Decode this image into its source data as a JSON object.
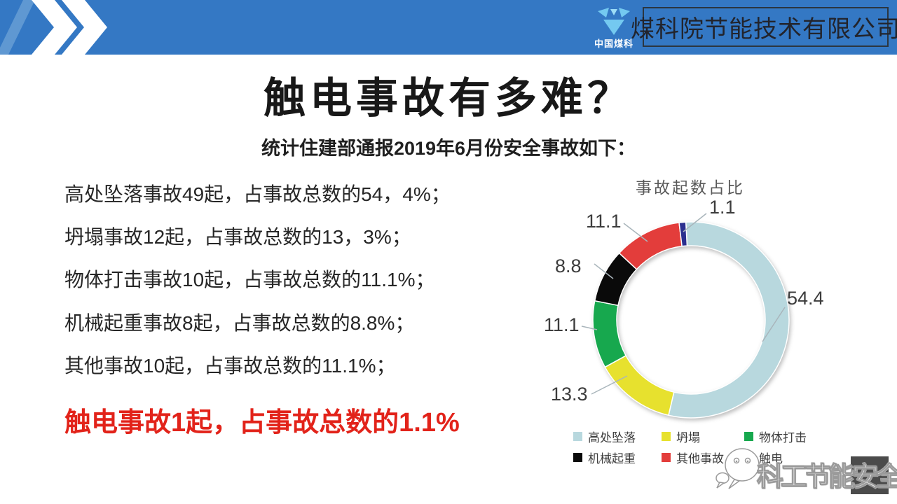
{
  "header": {
    "logo_text": "中国煤科",
    "company_name": "煤科院节能技术有限公司"
  },
  "title": "触电事故有多难？",
  "subtitle": "统计住建部通报2019年6月份安全事故如下：",
  "body_lines": [
    "高处坠落事故49起，占事故总数的54，4%；",
    "坍塌事故12起，占事故总数的13，3%；",
    "物体打击事故10起，占事故总数的11.1%；",
    "机械起重事故8起，占事故总数的8.8%；",
    "其他事故10起，占事故总数的11.1%；"
  ],
  "highlight_line": "触电事故1起，占事故总数的1.1%",
  "chart_data": {
    "type": "pie",
    "donut": true,
    "title": "事故起数占比",
    "start_angle_deg": -3,
    "legend_position": "bottom",
    "slices": [
      {
        "name": "高处坠落",
        "value": 54.4,
        "color": "#b8d8de"
      },
      {
        "name": "坍塌",
        "value": 13.3,
        "color": "#e7e12e"
      },
      {
        "name": "物体打击",
        "value": 11.1,
        "color": "#17a84e"
      },
      {
        "name": "机械起重",
        "value": 8.8,
        "color": "#0a0a0a"
      },
      {
        "name": "其他事故",
        "value": 11.1,
        "color": "#e33d3b"
      },
      {
        "name": "触电",
        "value": 1.1,
        "color": "#2b2f8f"
      }
    ]
  },
  "watermark": {
    "text": "科工节能安全"
  }
}
